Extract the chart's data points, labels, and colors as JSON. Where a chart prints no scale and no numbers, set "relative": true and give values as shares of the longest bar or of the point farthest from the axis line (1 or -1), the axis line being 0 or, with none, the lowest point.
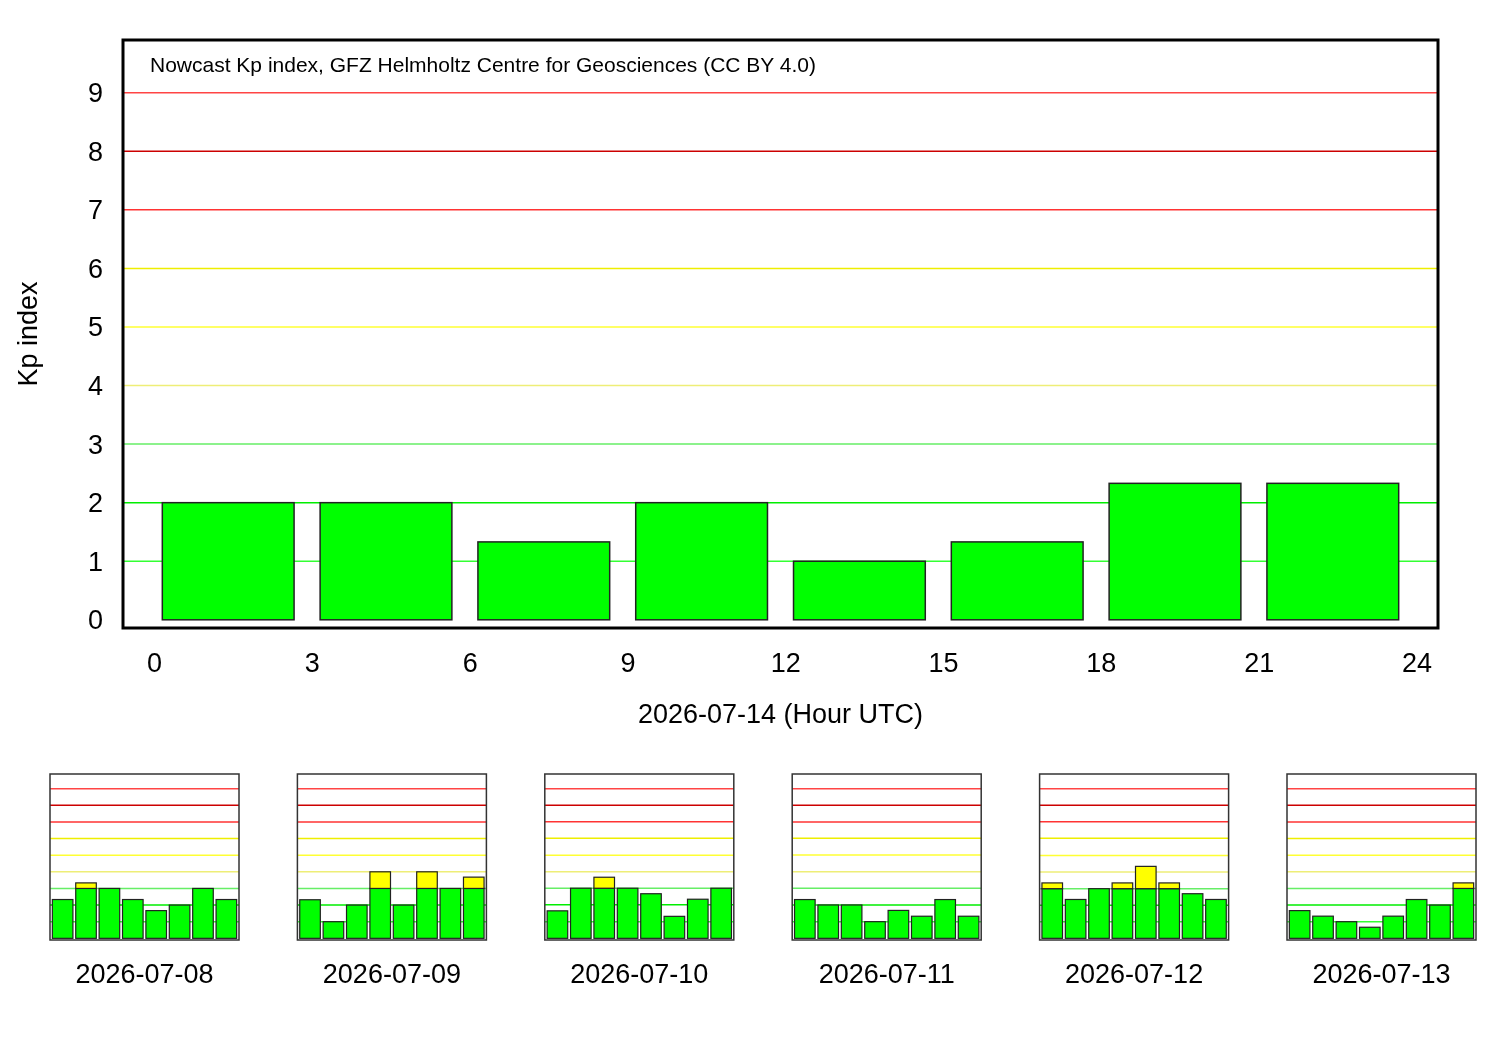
{
  "chart_data": [
    {
      "type": "bar",
      "xlabel": "2026-07-14 (Hour UTC)",
      "ylabel": "Kp index",
      "annotations": [
        "Nowcast Kp index, GFZ Helmholtz Centre for Geosciences (CC BY 4.0)"
      ],
      "x": [
        1.4,
        4.4,
        7.4,
        10.4,
        13.4,
        16.4,
        19.4,
        22.4
      ],
      "series": [
        {
          "color": "#00ff00",
          "values": [
            2,
            2,
            1.33,
            2,
            1,
            1.33,
            2.33,
            2.33
          ]
        }
      ],
      "xlim": [
        -0.6,
        24.4
      ],
      "xticks": [
        0,
        3,
        6,
        9,
        12,
        15,
        18,
        21,
        24
      ],
      "ylim": [
        -0.14,
        9.9
      ],
      "yticks": [
        0,
        1,
        2,
        3,
        4,
        5,
        6,
        7,
        8,
        9
      ],
      "ref_lines": [
        {
          "axis": "y",
          "value": 1,
          "color": "#33ff33"
        },
        {
          "axis": "y",
          "value": 2,
          "color": "#00ee00"
        },
        {
          "axis": "y",
          "value": 3,
          "color": "#66ee66"
        },
        {
          "axis": "y",
          "value": 4,
          "color": "#eeee77"
        },
        {
          "axis": "y",
          "value": 5,
          "color": "#ffff33"
        },
        {
          "axis": "y",
          "value": 6,
          "color": "#eeee00"
        },
        {
          "axis": "y",
          "value": 7,
          "color": "#ff3333"
        },
        {
          "axis": "y",
          "value": 8,
          "color": "#cc0000"
        },
        {
          "axis": "y",
          "value": 9,
          "color": "#ff4444"
        }
      ]
    },
    {
      "type": "bar",
      "stacked": true,
      "relative": true,
      "xlabel": "2026-07-08",
      "categories": [
        null,
        null,
        null,
        null,
        null,
        null,
        null,
        null
      ],
      "series": [
        {
          "color": "#00ff00",
          "values": [
            0.7,
            0.9,
            0.9,
            0.7,
            0.5,
            0.6,
            0.9,
            0.7
          ]
        },
        {
          "color": "#ffff00",
          "values": [
            0,
            0.1,
            0,
            0,
            0,
            0,
            0,
            0
          ]
        }
      ],
      "ref_lines": [
        {
          "axis": "y",
          "value": 0.3,
          "color": "#33ff33"
        },
        {
          "axis": "y",
          "value": 0.6,
          "color": "#00ee00"
        },
        {
          "axis": "y",
          "value": 0.9,
          "color": "#66ee66"
        },
        {
          "axis": "y",
          "value": 1.2,
          "color": "#eeee77"
        },
        {
          "axis": "y",
          "value": 1.5,
          "color": "#ffff33"
        },
        {
          "axis": "y",
          "value": 1.8,
          "color": "#eeee00"
        },
        {
          "axis": "y",
          "value": 2.1,
          "color": "#ff3333"
        },
        {
          "axis": "y",
          "value": 2.4,
          "color": "#cc0000"
        },
        {
          "axis": "y",
          "value": 2.7,
          "color": "#ff4444"
        }
      ]
    },
    {
      "type": "bar",
      "stacked": true,
      "relative": true,
      "xlabel": "2026-07-09",
      "categories": [
        null,
        null,
        null,
        null,
        null,
        null,
        null,
        null
      ],
      "series": [
        {
          "color": "#00ff00",
          "values": [
            0.58,
            0.25,
            0.5,
            0.75,
            0.5,
            0.75,
            0.75,
            0.75
          ]
        },
        {
          "color": "#ffff00",
          "values": [
            0,
            0,
            0,
            0.25,
            0,
            0.25,
            0,
            0.17
          ]
        }
      ],
      "ref_lines": [
        {
          "axis": "y",
          "value": 0.25,
          "color": "#33ff33"
        },
        {
          "axis": "y",
          "value": 0.5,
          "color": "#00ee00"
        },
        {
          "axis": "y",
          "value": 0.75,
          "color": "#66ee66"
        },
        {
          "axis": "y",
          "value": 1,
          "color": "#eeee77"
        },
        {
          "axis": "y",
          "value": 1.25,
          "color": "#ffff33"
        },
        {
          "axis": "y",
          "value": 1.5,
          "color": "#eeee00"
        },
        {
          "axis": "y",
          "value": 1.75,
          "color": "#ff3333"
        },
        {
          "axis": "y",
          "value": 2,
          "color": "#cc0000"
        },
        {
          "axis": "y",
          "value": 2.25,
          "color": "#ff4444"
        }
      ]
    },
    {
      "type": "bar",
      "stacked": true,
      "relative": true,
      "xlabel": "2026-07-10",
      "categories": [
        null,
        null,
        null,
        null,
        null,
        null,
        null,
        null
      ],
      "series": [
        {
          "color": "#00ff00",
          "values": [
            0.45,
            0.82,
            0.82,
            0.82,
            0.73,
            0.36,
            0.64,
            0.82
          ]
        },
        {
          "color": "#ffff00",
          "values": [
            0,
            0,
            0.18,
            0,
            0,
            0,
            0,
            0
          ]
        }
      ],
      "ref_lines": [
        {
          "axis": "y",
          "value": 0.27,
          "color": "#33ff33"
        },
        {
          "axis": "y",
          "value": 0.55,
          "color": "#00ee00"
        },
        {
          "axis": "y",
          "value": 0.82,
          "color": "#66ee66"
        },
        {
          "axis": "y",
          "value": 1.09,
          "color": "#eeee77"
        },
        {
          "axis": "y",
          "value": 1.36,
          "color": "#ffff33"
        },
        {
          "axis": "y",
          "value": 1.64,
          "color": "#eeee00"
        },
        {
          "axis": "y",
          "value": 1.91,
          "color": "#ff3333"
        },
        {
          "axis": "y",
          "value": 2.18,
          "color": "#cc0000"
        },
        {
          "axis": "y",
          "value": 2.45,
          "color": "#ff4444"
        }
      ]
    },
    {
      "type": "bar",
      "stacked": true,
      "relative": true,
      "xlabel": "2026-07-11",
      "categories": [
        null,
        null,
        null,
        null,
        null,
        null,
        null,
        null
      ],
      "series": [
        {
          "color": "#00ff00",
          "values": [
            1,
            0.86,
            0.86,
            0.43,
            0.72,
            0.57,
            1,
            0.57
          ]
        }
      ],
      "ref_lines": [
        {
          "axis": "y",
          "value": 0.43,
          "color": "#33ff33"
        },
        {
          "axis": "y",
          "value": 0.86,
          "color": "#00ee00"
        },
        {
          "axis": "y",
          "value": 1.29,
          "color": "#66ee66"
        },
        {
          "axis": "y",
          "value": 1.72,
          "color": "#eeee77"
        },
        {
          "axis": "y",
          "value": 2.15,
          "color": "#ffff33"
        },
        {
          "axis": "y",
          "value": 2.58,
          "color": "#eeee00"
        },
        {
          "axis": "y",
          "value": 3,
          "color": "#ff3333"
        },
        {
          "axis": "y",
          "value": 3.43,
          "color": "#cc0000"
        },
        {
          "axis": "y",
          "value": 3.86,
          "color": "#ff4444"
        }
      ]
    },
    {
      "type": "bar",
      "stacked": true,
      "relative": true,
      "xlabel": "2026-07-12",
      "categories": [
        null,
        null,
        null,
        null,
        null,
        null,
        null,
        null
      ],
      "series": [
        {
          "color": "#00ff00",
          "values": [
            0.69,
            0.54,
            0.69,
            0.69,
            0.69,
            0.69,
            0.62,
            0.54
          ]
        },
        {
          "color": "#ffff00",
          "values": [
            0.08,
            0,
            0,
            0.08,
            0.31,
            0.08,
            0,
            0
          ]
        }
      ],
      "ref_lines": [
        {
          "axis": "y",
          "value": 0.23,
          "color": "#33ff33"
        },
        {
          "axis": "y",
          "value": 0.46,
          "color": "#00ee00"
        },
        {
          "axis": "y",
          "value": 0.69,
          "color": "#66ee66"
        },
        {
          "axis": "y",
          "value": 0.92,
          "color": "#eeee77"
        },
        {
          "axis": "y",
          "value": 1.15,
          "color": "#ffff33"
        },
        {
          "axis": "y",
          "value": 1.39,
          "color": "#eeee00"
        },
        {
          "axis": "y",
          "value": 1.62,
          "color": "#ff3333"
        },
        {
          "axis": "y",
          "value": 1.85,
          "color": "#cc0000"
        },
        {
          "axis": "y",
          "value": 2.08,
          "color": "#ff4444"
        }
      ]
    },
    {
      "type": "bar",
      "stacked": true,
      "relative": true,
      "xlabel": "2026-07-13",
      "categories": [
        null,
        null,
        null,
        null,
        null,
        null,
        null,
        null
      ],
      "series": [
        {
          "color": "#00ff00",
          "values": [
            0.5,
            0.4,
            0.3,
            0.2,
            0.4,
            0.7,
            0.6,
            0.9
          ]
        },
        {
          "color": "#ffff00",
          "values": [
            0,
            0,
            0,
            0,
            0,
            0,
            0,
            0.1
          ]
        }
      ],
      "ref_lines": [
        {
          "axis": "y",
          "value": 0.3,
          "color": "#33ff33"
        },
        {
          "axis": "y",
          "value": 0.6,
          "color": "#00ee00"
        },
        {
          "axis": "y",
          "value": 0.9,
          "color": "#66ee66"
        },
        {
          "axis": "y",
          "value": 1.2,
          "color": "#eeee77"
        },
        {
          "axis": "y",
          "value": 1.5,
          "color": "#ffff33"
        },
        {
          "axis": "y",
          "value": 1.8,
          "color": "#eeee00"
        },
        {
          "axis": "y",
          "value": 2.1,
          "color": "#ff3333"
        },
        {
          "axis": "y",
          "value": 2.4,
          "color": "#cc0000"
        },
        {
          "axis": "y",
          "value": 2.7,
          "color": "#ff4444"
        }
      ]
    }
  ]
}
